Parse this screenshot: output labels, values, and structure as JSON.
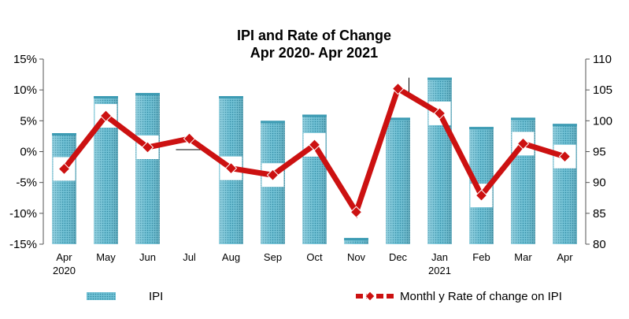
{
  "chart_data": {
    "type": "bar+line",
    "title_line1": "IPI and Rate of Change",
    "title_line2": "Apr 2020- Apr 2021",
    "categories": [
      "Apr",
      "May",
      "Jun",
      "Jul",
      "Aug",
      "Sep",
      "Oct",
      "Nov",
      "Dec",
      "Jan",
      "Feb",
      "Mar",
      "Apr"
    ],
    "category_sublabels": [
      "2020",
      "",
      "",
      "",
      "",
      "",
      "",
      "",
      "",
      "2021",
      "",
      "",
      ""
    ],
    "left_axis": {
      "min": -0.15,
      "max": 0.15,
      "ticks": [
        "15%",
        "10%",
        "5%",
        "0%",
        "-5%",
        "-10%",
        "-15%"
      ]
    },
    "right_axis": {
      "min": 80,
      "max": 110,
      "ticks": [
        "110",
        "105",
        "100",
        "95",
        "90",
        "85",
        "80"
      ]
    },
    "series": [
      {
        "name": "IPI",
        "kind": "bar",
        "axis": "right",
        "color": "#5fb3c8",
        "values": [
          98,
          104,
          104.5,
          null,
          104,
          100,
          101,
          81,
          100.5,
          107,
          99,
          100.5,
          99.5
        ]
      },
      {
        "name": "Monthl y Rate of change on IPI",
        "kind": "line",
        "axis": "left",
        "color": "#cc1111",
        "values": [
          -0.028,
          0.058,
          0.007,
          0.021,
          -0.027,
          -0.038,
          0.011,
          -0.098,
          0.102,
          0.062,
          -0.071,
          0.013,
          -0.008
        ]
      }
    ],
    "legend_placement": "bottom",
    "grid": false
  }
}
